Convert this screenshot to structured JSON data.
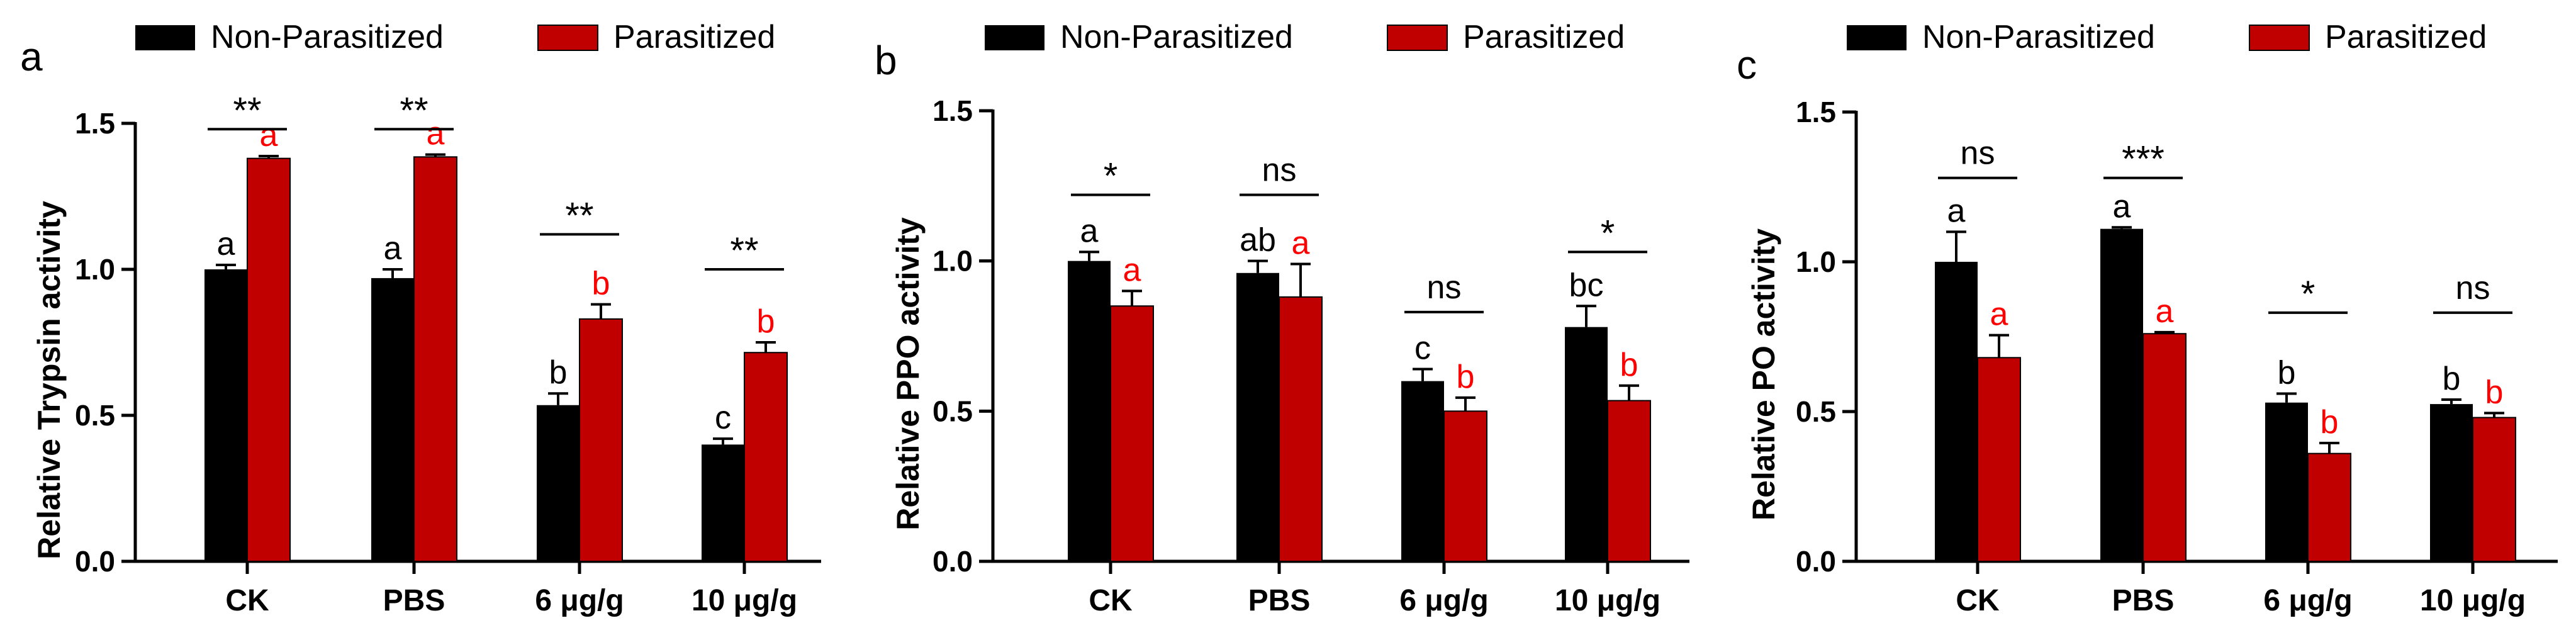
{
  "colors": {
    "non_parasitized": "#000000",
    "parasitized": "#c00000",
    "parasitized_letter": "#ff0000",
    "axis": "#000000"
  },
  "chart_data": [
    {
      "type": "bar",
      "panel_label": "a",
      "ylabel": "Relative Trypsin activity",
      "ylim": [
        0,
        1.5
      ],
      "yticks": [
        "0.0",
        "0.5",
        "1.0",
        "1.5"
      ],
      "legend": [
        "Non-Parasitized",
        "Parasitized"
      ],
      "categories": [
        "CK",
        "PBS",
        "6 μg/g",
        "10 μg/g"
      ],
      "series": [
        {
          "name": "Non-Parasitized",
          "values": [
            1.0,
            0.97,
            0.535,
            0.4
          ],
          "errors": [
            0.015,
            0.03,
            0.04,
            0.02
          ],
          "letters": [
            "a",
            "a",
            "b",
            "c"
          ]
        },
        {
          "name": "Parasitized",
          "values": [
            1.38,
            1.385,
            0.83,
            0.715
          ],
          "errors": [
            0.008,
            0.008,
            0.05,
            0.035
          ],
          "letters": [
            "a",
            "a",
            "b",
            "b"
          ]
        }
      ],
      "significance": [
        "**",
        "**",
        "**",
        "**"
      ],
      "sig_levels": [
        1.48,
        1.48,
        1.12,
        1.0
      ]
    },
    {
      "type": "bar",
      "panel_label": "b",
      "ylabel": "Relative PPO activity",
      "ylim": [
        0,
        1.5
      ],
      "yticks": [
        "0.0",
        "0.5",
        "1.0",
        "1.5"
      ],
      "legend": [
        "Non-Parasitized",
        "Parasitized"
      ],
      "categories": [
        "CK",
        "PBS",
        "6 μg/g",
        "10 μg/g"
      ],
      "series": [
        {
          "name": "Non-Parasitized",
          "values": [
            1.0,
            0.96,
            0.6,
            0.78
          ],
          "errors": [
            0.03,
            0.04,
            0.04,
            0.07
          ],
          "letters": [
            "a",
            "ab",
            "c",
            "bc"
          ]
        },
        {
          "name": "Parasitized",
          "values": [
            0.85,
            0.88,
            0.5,
            0.535
          ],
          "errors": [
            0.05,
            0.11,
            0.045,
            0.05
          ],
          "letters": [
            "a",
            "a",
            "b",
            "b"
          ]
        }
      ],
      "significance": [
        "*",
        "ns",
        "ns",
        "*"
      ],
      "sig_levels": [
        1.22,
        1.22,
        0.83,
        1.03
      ]
    },
    {
      "type": "bar",
      "panel_label": "c",
      "ylabel": "Relative PO activity",
      "ylim": [
        0,
        1.5
      ],
      "yticks": [
        "0.0",
        "0.5",
        "1.0",
        "1.5"
      ],
      "legend": [
        "Non-Parasitized",
        "Parasitized"
      ],
      "categories": [
        "CK",
        "PBS",
        "6 μg/g",
        "10 μg/g"
      ],
      "series": [
        {
          "name": "Non-Parasitized",
          "values": [
            1.0,
            1.11,
            0.53,
            0.525
          ],
          "errors": [
            0.1,
            0.005,
            0.03,
            0.015
          ],
          "letters": [
            "a",
            "a",
            "b",
            "b"
          ]
        },
        {
          "name": "Parasitized",
          "values": [
            0.68,
            0.76,
            0.36,
            0.48
          ],
          "errors": [
            0.075,
            0.005,
            0.035,
            0.015
          ],
          "letters": [
            "a",
            "a",
            "b",
            "b"
          ]
        }
      ],
      "significance": [
        "ns",
        "***",
        "*",
        "ns"
      ],
      "sig_levels": [
        1.28,
        1.28,
        0.83,
        0.83
      ]
    }
  ]
}
